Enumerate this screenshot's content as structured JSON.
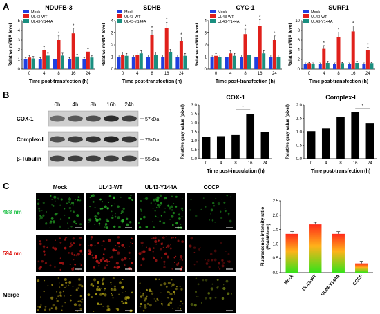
{
  "panel_labels": {
    "a": "A",
    "b": "B",
    "c": "C"
  },
  "panel_a": {
    "legend": [
      "Mock",
      "UL43-WT",
      "UL43-Y144A"
    ],
    "colors": [
      "#1f3fe0",
      "#e0201b",
      "#1a8f80"
    ],
    "xlabel": "Time post-transfection (h)",
    "ylabel": "Relative mRNA level"
  },
  "panel_b": {
    "blot_times": [
      "0h",
      "4h",
      "8h",
      "16h",
      "24h"
    ],
    "blot_rows": [
      "COX-1",
      "Complex-I",
      "β-Tubulin"
    ],
    "blot_kda": [
      "57kDa",
      "75kDa",
      "55kDa"
    ],
    "ylabel": "Relative gray value (pixel)"
  },
  "panel_c": {
    "columns": [
      "Mock",
      "UL43-WT",
      "UL43-Y144A",
      "CCCP"
    ],
    "rows": [
      "488 nm",
      "594 nm",
      "Merge"
    ],
    "row_colors": [
      "#22c24a",
      "#e0201b",
      "#000000"
    ]
  },
  "chart_data": [
    {
      "type": "bar",
      "title": "NDUFB-3",
      "categories": [
        "0",
        "4",
        "8",
        "16",
        "24"
      ],
      "ylim": [
        0,
        5
      ],
      "yticks": [
        0,
        1,
        2,
        3,
        4,
        5
      ],
      "xlabel": "Time post-transfection (h)",
      "ylabel": "Relative mRNA level",
      "series": [
        {
          "name": "Mock",
          "values": [
            1.0,
            1.0,
            1.05,
            1.0,
            1.0
          ]
        },
        {
          "name": "UL43-WT",
          "values": [
            1.2,
            2.0,
            3.0,
            3.7,
            1.8
          ]
        },
        {
          "name": "UL43-Y144A",
          "values": [
            1.1,
            1.4,
            1.4,
            1.3,
            1.2
          ]
        }
      ],
      "significance": [
        "",
        "",
        "*",
        "*",
        ""
      ]
    },
    {
      "type": "bar",
      "title": "SDHB",
      "categories": [
        "0",
        "4",
        "8",
        "16",
        "24"
      ],
      "ylim": [
        0,
        4
      ],
      "yticks": [
        0,
        1,
        2,
        3,
        4
      ],
      "xlabel": "Time post-transfection (h)",
      "ylabel": "Relative mRNA level",
      "series": [
        {
          "name": "Mock",
          "values": [
            1.0,
            1.0,
            1.0,
            1.0,
            1.0
          ]
        },
        {
          "name": "UL43-WT",
          "values": [
            1.2,
            1.2,
            2.8,
            3.4,
            2.3
          ]
        },
        {
          "name": "UL43-Y144A",
          "values": [
            1.1,
            1.3,
            1.2,
            1.4,
            1.1
          ]
        }
      ],
      "significance": [
        "",
        "",
        "*",
        "*",
        "*"
      ]
    },
    {
      "type": "bar",
      "title": "CYC-1",
      "categories": [
        "0",
        "4",
        "8",
        "16",
        "24"
      ],
      "ylim": [
        0,
        4
      ],
      "yticks": [
        0,
        1,
        2,
        3,
        4
      ],
      "xlabel": "Time post-transfection (h)",
      "ylabel": "Relative mRNA level",
      "series": [
        {
          "name": "Mock",
          "values": [
            1.0,
            1.0,
            1.0,
            1.0,
            1.0
          ]
        },
        {
          "name": "UL43-WT",
          "values": [
            1.1,
            1.3,
            2.9,
            3.6,
            2.4
          ]
        },
        {
          "name": "UL43-Y144A",
          "values": [
            1.0,
            1.1,
            1.2,
            1.3,
            1.0
          ]
        }
      ],
      "significance": [
        "",
        "",
        "*",
        "*",
        "*"
      ]
    },
    {
      "type": "bar",
      "title": "SURF1",
      "categories": [
        "0",
        "4",
        "8",
        "16",
        "24"
      ],
      "ylim": [
        0,
        10
      ],
      "yticks": [
        0,
        2,
        4,
        6,
        8,
        10
      ],
      "xlabel": "Time post-transfection (h)",
      "ylabel": "Relative mRNA level",
      "series": [
        {
          "name": "Mock",
          "values": [
            1.0,
            1.0,
            1.0,
            1.0,
            1.0
          ]
        },
        {
          "name": "UL43-WT",
          "values": [
            1.1,
            4.2,
            6.7,
            7.8,
            3.9
          ]
        },
        {
          "name": "UL43-Y144A",
          "values": [
            1.0,
            1.2,
            1.1,
            1.2,
            1.1
          ]
        }
      ],
      "significance": [
        "",
        "*",
        "*",
        "*",
        "*"
      ]
    },
    {
      "type": "bar",
      "title": "COX-1",
      "categories": [
        "0",
        "4",
        "8",
        "16",
        "24"
      ],
      "ylim": [
        0.0,
        3.0
      ],
      "yticks": [
        "0.0",
        "0.5",
        "1.0",
        "1.5",
        "2.0",
        "2.5",
        "3.0"
      ],
      "xlabel": "Time post-inoculation (h)",
      "ylabel": "Relative gray value (pixel)",
      "values": [
        1.2,
        1.25,
        1.35,
        2.5,
        1.5
      ],
      "significance_bracket": {
        "from": "8",
        "to": "16",
        "label": "*"
      }
    },
    {
      "type": "bar",
      "title": "Complex-I",
      "categories": [
        "0",
        "4",
        "8",
        "16",
        "24"
      ],
      "ylim": [
        0.0,
        2.0
      ],
      "yticks": [
        "0.0",
        "0.5",
        "1.0",
        "1.5",
        "2.0"
      ],
      "xlabel": "Time post-transfection (h)",
      "ylabel": "Relative gray value (pixel)",
      "values": [
        1.02,
        1.12,
        1.55,
        1.72,
        1.33
      ],
      "significance_bracket": {
        "from": "16",
        "to": "24",
        "label": "*"
      }
    },
    {
      "type": "bar",
      "title": "",
      "categories": [
        "Mock",
        "UL43-WT",
        "UL43-Y144A",
        "CCCP"
      ],
      "ylim": [
        0.0,
        2.5
      ],
      "yticks": [
        "0.0",
        "0.5",
        "1.0",
        "1.5",
        "2.0",
        "2.5"
      ],
      "xlabel": "",
      "ylabel": "Fluorescence intensity ratio (594/488nm)",
      "values": [
        1.35,
        1.68,
        1.35,
        0.32
      ]
    }
  ]
}
